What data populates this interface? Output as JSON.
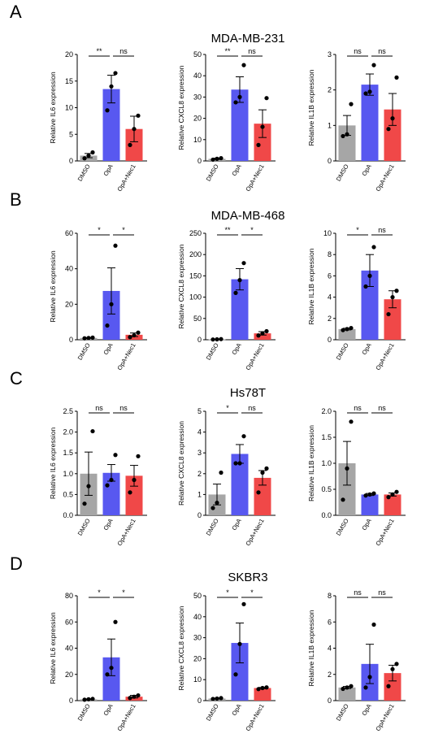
{
  "chart_data": [
    {
      "panel": "A",
      "cell": "MDA-MB-231",
      "type": "bar",
      "categories": [
        "DMSO",
        "OpA",
        "OpA+Nec1"
      ],
      "ylabel": "Relative IL6 expression",
      "ylim": [
        0,
        20
      ],
      "yticks": [
        0,
        5,
        10,
        15,
        20
      ],
      "values": [
        1.0,
        13.5,
        6.0
      ],
      "sem": [
        0.4,
        2.6,
        2.4
      ],
      "points": [
        [
          0.5,
          1.0,
          1.6
        ],
        [
          9.5,
          14.0,
          16.5
        ],
        [
          3.0,
          6.0,
          8.5
        ]
      ],
      "significance": [
        "**",
        "ns"
      ],
      "colors": [
        "#a6a6a6",
        "#5858f0",
        "#f04848"
      ]
    },
    {
      "panel": "A",
      "cell": "MDA-MB-231",
      "type": "bar",
      "categories": [
        "DMSO",
        "OpA",
        "OpA+Nec1"
      ],
      "ylabel": "Relative CXCL8 expression",
      "ylim": [
        0,
        50
      ],
      "yticks": [
        0,
        10,
        20,
        30,
        40,
        50
      ],
      "values": [
        1.0,
        33.5,
        17.5
      ],
      "sem": [
        0.3,
        6.0,
        6.5
      ],
      "points": [
        [
          0.6,
          1.0,
          1.3
        ],
        [
          27.5,
          30.0,
          45.0
        ],
        [
          7.5,
          16.0,
          29.5
        ]
      ],
      "significance": [
        "**",
        "ns"
      ],
      "colors": [
        "#a6a6a6",
        "#5858f0",
        "#f04848"
      ]
    },
    {
      "panel": "A",
      "cell": "MDA-MB-231",
      "type": "bar",
      "categories": [
        "DMSO",
        "OpA",
        "OpA+Nec1"
      ],
      "ylabel": "Relative IL1B expression",
      "ylim": [
        0,
        3
      ],
      "yticks": [
        0,
        1,
        2,
        3
      ],
      "values": [
        1.0,
        2.15,
        1.45
      ],
      "sem": [
        0.28,
        0.3,
        0.45
      ],
      "points": [
        [
          0.7,
          0.75,
          1.6
        ],
        [
          1.9,
          1.95,
          2.7
        ],
        [
          0.9,
          1.2,
          2.35
        ]
      ],
      "significance": [
        "ns",
        "ns"
      ],
      "colors": [
        "#a6a6a6",
        "#5858f0",
        "#f04848"
      ]
    },
    {
      "panel": "B",
      "cell": "MDA-MB-468",
      "type": "bar",
      "categories": [
        "DMSO",
        "OpA",
        "OpA+Nec1"
      ],
      "ylabel": "Relative IL6 expression",
      "ylim": [
        0,
        60
      ],
      "yticks": [
        0,
        20,
        40,
        60
      ],
      "values": [
        1.0,
        27.5,
        2.8
      ],
      "sem": [
        0.2,
        13.0,
        1.0
      ],
      "points": [
        [
          0.8,
          1.0,
          1.2
        ],
        [
          8.0,
          20.0,
          53.0
        ],
        [
          1.5,
          2.5,
          4.0
        ]
      ],
      "significance": [
        "*",
        "*"
      ],
      "colors": [
        "#a6a6a6",
        "#5858f0",
        "#f04848"
      ]
    },
    {
      "panel": "B",
      "cell": "MDA-MB-468",
      "type": "bar",
      "categories": [
        "DMSO",
        "OpA",
        "OpA+Nec1"
      ],
      "ylabel": "Relative CXCL8 expression",
      "ylim": [
        0,
        250
      ],
      "yticks": [
        0,
        50,
        100,
        150,
        200,
        250
      ],
      "values": [
        1.0,
        142.0,
        15.0
      ],
      "sem": [
        0.4,
        25.0,
        4.0
      ],
      "points": [
        [
          0.6,
          1.0,
          1.5
        ],
        [
          110.0,
          140.0,
          180.0
        ],
        [
          10.0,
          15.0,
          20.0
        ]
      ],
      "significance": [
        "**",
        "*"
      ],
      "colors": [
        "#a6a6a6",
        "#5858f0",
        "#f04848"
      ]
    },
    {
      "panel": "B",
      "cell": "MDA-MB-468",
      "type": "bar",
      "categories": [
        "DMSO",
        "OpA",
        "OpA+Nec1"
      ],
      "ylabel": "Relative IL1B expression",
      "ylim": [
        0,
        10
      ],
      "yticks": [
        0,
        2,
        4,
        6,
        8,
        10
      ],
      "values": [
        1.0,
        6.5,
        3.8
      ],
      "sem": [
        0.08,
        1.5,
        0.8
      ],
      "points": [
        [
          0.9,
          1.0,
          1.1
        ],
        [
          5.0,
          6.0,
          8.7
        ],
        [
          2.4,
          4.0,
          4.6
        ]
      ],
      "significance": [
        "*",
        "ns"
      ],
      "colors": [
        "#a6a6a6",
        "#5858f0",
        "#f04848"
      ]
    },
    {
      "panel": "C",
      "cell": "Hs78T",
      "type": "bar",
      "categories": [
        "DMSO",
        "OpA",
        "OpA+Nec1"
      ],
      "ylabel": "Relative IL6 expression",
      "ylim": [
        0,
        2.5
      ],
      "yticks": [
        0.0,
        0.5,
        1.0,
        1.5,
        2.0,
        2.5
      ],
      "values": [
        1.0,
        1.02,
        0.95
      ],
      "sem": [
        0.52,
        0.2,
        0.25
      ],
      "points": [
        [
          0.28,
          0.7,
          2.02
        ],
        [
          0.72,
          0.85,
          1.45
        ],
        [
          0.55,
          0.85,
          1.42
        ]
      ],
      "significance": [
        "ns",
        "ns"
      ],
      "colors": [
        "#a6a6a6",
        "#5858f0",
        "#f04848"
      ]
    },
    {
      "panel": "C",
      "cell": "Hs78T",
      "type": "bar",
      "categories": [
        "DMSO",
        "OpA",
        "OpA+Nec1"
      ],
      "ylabel": "Relative CXCL8 expression",
      "ylim": [
        0,
        5
      ],
      "yticks": [
        0,
        1,
        2,
        3,
        4,
        5
      ],
      "values": [
        1.0,
        2.95,
        1.8
      ],
      "sem": [
        0.5,
        0.45,
        0.35
      ],
      "points": [
        [
          0.35,
          0.6,
          2.05
        ],
        [
          2.5,
          2.5,
          3.8
        ],
        [
          1.1,
          2.05,
          2.25
        ]
      ],
      "significance": [
        "*",
        "ns"
      ],
      "colors": [
        "#a6a6a6",
        "#5858f0",
        "#f04848"
      ]
    },
    {
      "panel": "C",
      "cell": "Hs78T",
      "type": "bar",
      "categories": [
        "DMSO",
        "OpA",
        "OpA+Nec1"
      ],
      "ylabel": "Relative IL1B expression",
      "ylim": [
        0,
        2.0
      ],
      "yticks": [
        0.0,
        0.5,
        1.0,
        1.5,
        2.0
      ],
      "values": [
        1.0,
        0.4,
        0.4
      ],
      "sem": [
        0.42,
        0.02,
        0.03
      ],
      "points": [
        [
          0.3,
          0.9,
          1.8
        ],
        [
          0.38,
          0.4,
          0.42
        ],
        [
          0.35,
          0.4,
          0.45
        ]
      ],
      "significance": [
        "ns",
        "ns"
      ],
      "colors": [
        "#a6a6a6",
        "#5858f0",
        "#f04848"
      ]
    },
    {
      "panel": "D",
      "cell": "SKBR3",
      "type": "bar",
      "categories": [
        "DMSO",
        "OpA",
        "OpA+Nec1"
      ],
      "ylabel": "Relative IL6 expression",
      "ylim": [
        0,
        80
      ],
      "yticks": [
        0,
        20,
        40,
        60,
        80
      ],
      "values": [
        1.0,
        33.0,
        3.0
      ],
      "sem": [
        0.3,
        14.0,
        1.0
      ],
      "points": [
        [
          0.7,
          1.0,
          1.3
        ],
        [
          20.0,
          25.0,
          60.0
        ],
        [
          2.0,
          3.0,
          4.0
        ]
      ],
      "significance": [
        "*",
        "*"
      ],
      "colors": [
        "#a6a6a6",
        "#5858f0",
        "#f04848"
      ]
    },
    {
      "panel": "D",
      "cell": "SKBR3",
      "type": "bar",
      "categories": [
        "DMSO",
        "OpA",
        "OpA+Nec1"
      ],
      "ylabel": "Relative CXCL8 expression",
      "ylim": [
        0,
        50
      ],
      "yticks": [
        0,
        10,
        20,
        30,
        40,
        50
      ],
      "values": [
        1.0,
        27.5,
        6.0
      ],
      "sem": [
        0.2,
        9.5,
        0.3
      ],
      "points": [
        [
          0.8,
          1.0,
          1.2
        ],
        [
          12.5,
          27.0,
          46.0
        ],
        [
          5.5,
          6.0,
          6.3
        ]
      ],
      "significance": [
        "*",
        "*"
      ],
      "colors": [
        "#a6a6a6",
        "#5858f0",
        "#f04848"
      ]
    },
    {
      "panel": "D",
      "cell": "SKBR3",
      "type": "bar",
      "categories": [
        "DMSO",
        "OpA",
        "OpA+Nec1"
      ],
      "ylabel": "Relative IL1B expression",
      "ylim": [
        0,
        8
      ],
      "yticks": [
        0,
        2,
        4,
        6,
        8
      ],
      "values": [
        1.0,
        2.8,
        2.1
      ],
      "sem": [
        0.08,
        1.5,
        0.6
      ],
      "points": [
        [
          0.9,
          1.0,
          1.1
        ],
        [
          1.0,
          1.8,
          5.8
        ],
        [
          1.1,
          2.4,
          2.8
        ]
      ],
      "significance": [
        "ns",
        "ns"
      ],
      "colors": [
        "#a6a6a6",
        "#5858f0",
        "#f04848"
      ]
    }
  ],
  "panels": [
    {
      "letter": "A",
      "title": "MDA-MB-231"
    },
    {
      "letter": "B",
      "title": "MDA-MB-468"
    },
    {
      "letter": "C",
      "title": "Hs78T"
    },
    {
      "letter": "D",
      "title": "SKBR3"
    }
  ]
}
